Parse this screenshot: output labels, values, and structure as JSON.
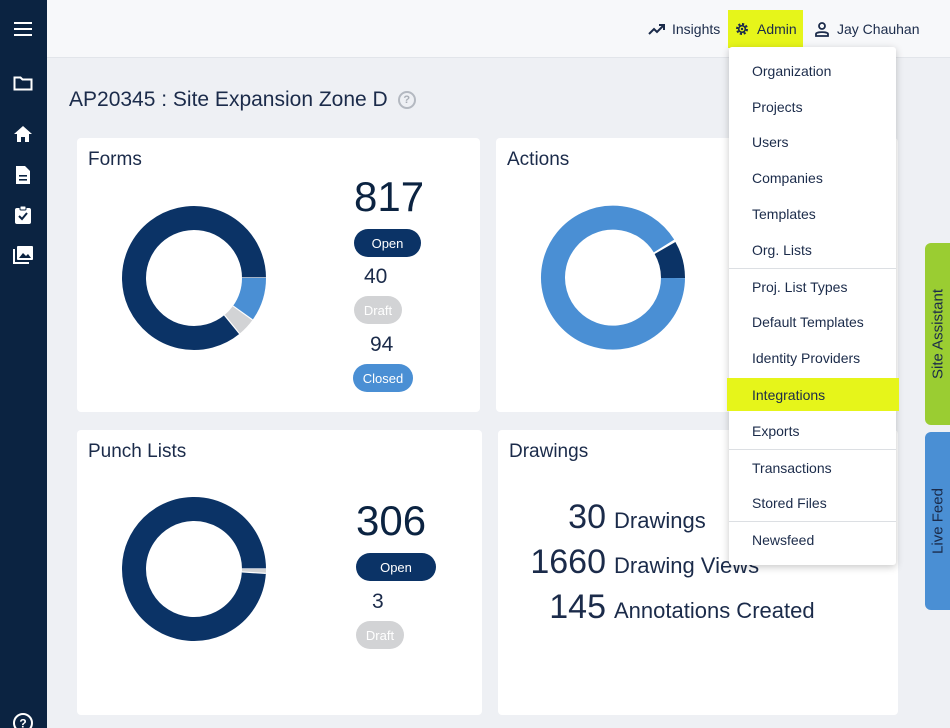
{
  "header": {
    "insights_label": "Insights",
    "admin_label": "Admin",
    "user_name": "Jay Chauhan"
  },
  "page": {
    "title": "AP20345 : Site Expansion Zone D",
    "help_glyph": "?"
  },
  "colors": {
    "sidebar": "#0b2341",
    "highlight": "#e6f51a",
    "open": "#0b3366",
    "draft": "#d2d3d5",
    "closed": "#4a8fd4",
    "site_assistant_tab": "#9acd32",
    "live_feed_tab": "#4a8fd4"
  },
  "cards": {
    "forms": {
      "title": "Forms",
      "open_count": "817",
      "open_label": "Open",
      "draft_count": "40",
      "draft_label": "Draft",
      "closed_count": "94",
      "closed_label": "Closed"
    },
    "actions": {
      "title": "Actions"
    },
    "punch_lists": {
      "title": "Punch Lists",
      "open_count": "306",
      "open_label": "Open",
      "draft_count": "3",
      "draft_label": "Draft"
    },
    "drawings": {
      "title": "Drawings",
      "rows": [
        {
          "value": "30",
          "label": "Drawings"
        },
        {
          "value": "1660",
          "label": "Drawing Views"
        },
        {
          "value": "145",
          "label": "Annotations Created"
        }
      ]
    }
  },
  "chart_data": [
    {
      "type": "pie",
      "categories": [
        "Open",
        "Draft",
        "Closed"
      ],
      "values": [
        817,
        40,
        94
      ]
    },
    {
      "type": "pie",
      "categories": [
        "Open",
        "Draft"
      ],
      "values": [
        306,
        3
      ]
    }
  ],
  "admin_menu": {
    "items": [
      "Organization",
      "Projects",
      "Users",
      "Companies",
      "Templates",
      "Org. Lists",
      "Proj. List Types",
      "Default Templates",
      "Identity Providers",
      "Integrations",
      "Exports",
      "Transactions",
      "Stored Files",
      "Newsfeed"
    ],
    "highlighted": "Integrations"
  },
  "side_tabs": {
    "site_assistant": "Site Assistant",
    "live_feed": "Live Feed"
  }
}
